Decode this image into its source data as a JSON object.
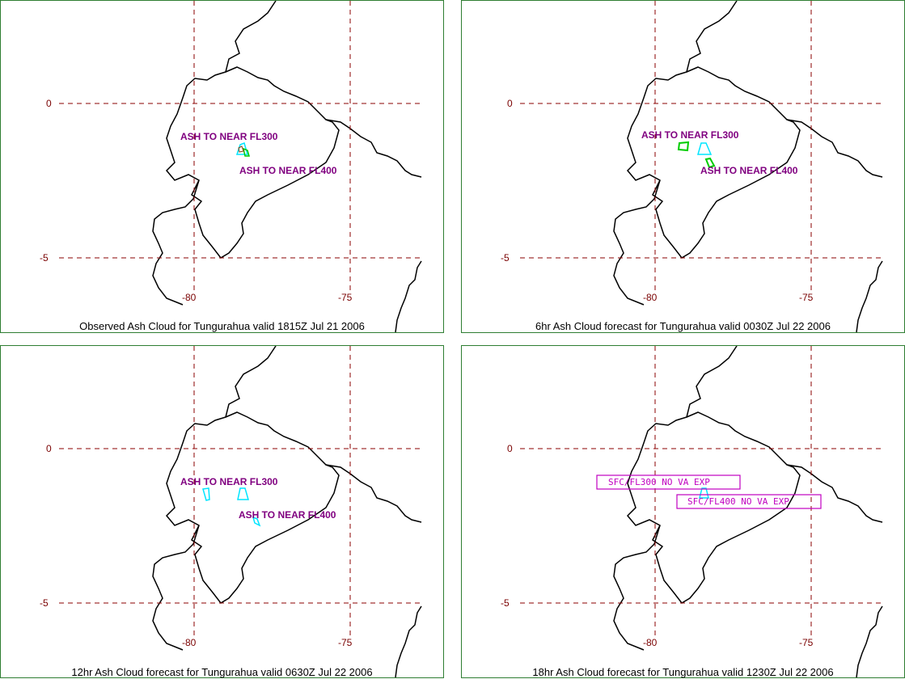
{
  "panels": [
    {
      "caption": "Observed Ash Cloud for Tungurahua valid 1815Z Jul 21 2006",
      "labels": [
        "ASH TO NEAR FL300",
        "ASH TO NEAR FL400"
      ],
      "boxes": []
    },
    {
      "caption": "6hr Ash Cloud forecast for Tungurahua valid 0030Z Jul 22 2006",
      "labels": [
        "ASH TO NEAR FL300",
        "ASH TO NEAR FL400"
      ],
      "boxes": []
    },
    {
      "caption": "12hr Ash Cloud forecast for Tungurahua valid 0630Z Jul 22 2006",
      "labels": [
        "ASH TO NEAR FL300",
        "ASH TO NEAR FL400"
      ],
      "boxes": []
    },
    {
      "caption": "18hr Ash Cloud forecast for Tungurahua valid 1230Z Jul 22 2006",
      "labels": [],
      "boxes": [
        "SFC/FL300 NO VA EXP",
        "SFC/FL400 NO VA EXP"
      ]
    }
  ],
  "grid": {
    "lat_labels": [
      "0",
      "-5"
    ],
    "lon_labels": [
      "-80",
      "-75"
    ]
  },
  "colors": {
    "border": "#2e7d32",
    "grid": "#8b0000",
    "coast": "#000000",
    "ash_label": "#800080",
    "fl300": "#00e5ff",
    "fl400": "#00cc00",
    "box": "#c000c0"
  }
}
